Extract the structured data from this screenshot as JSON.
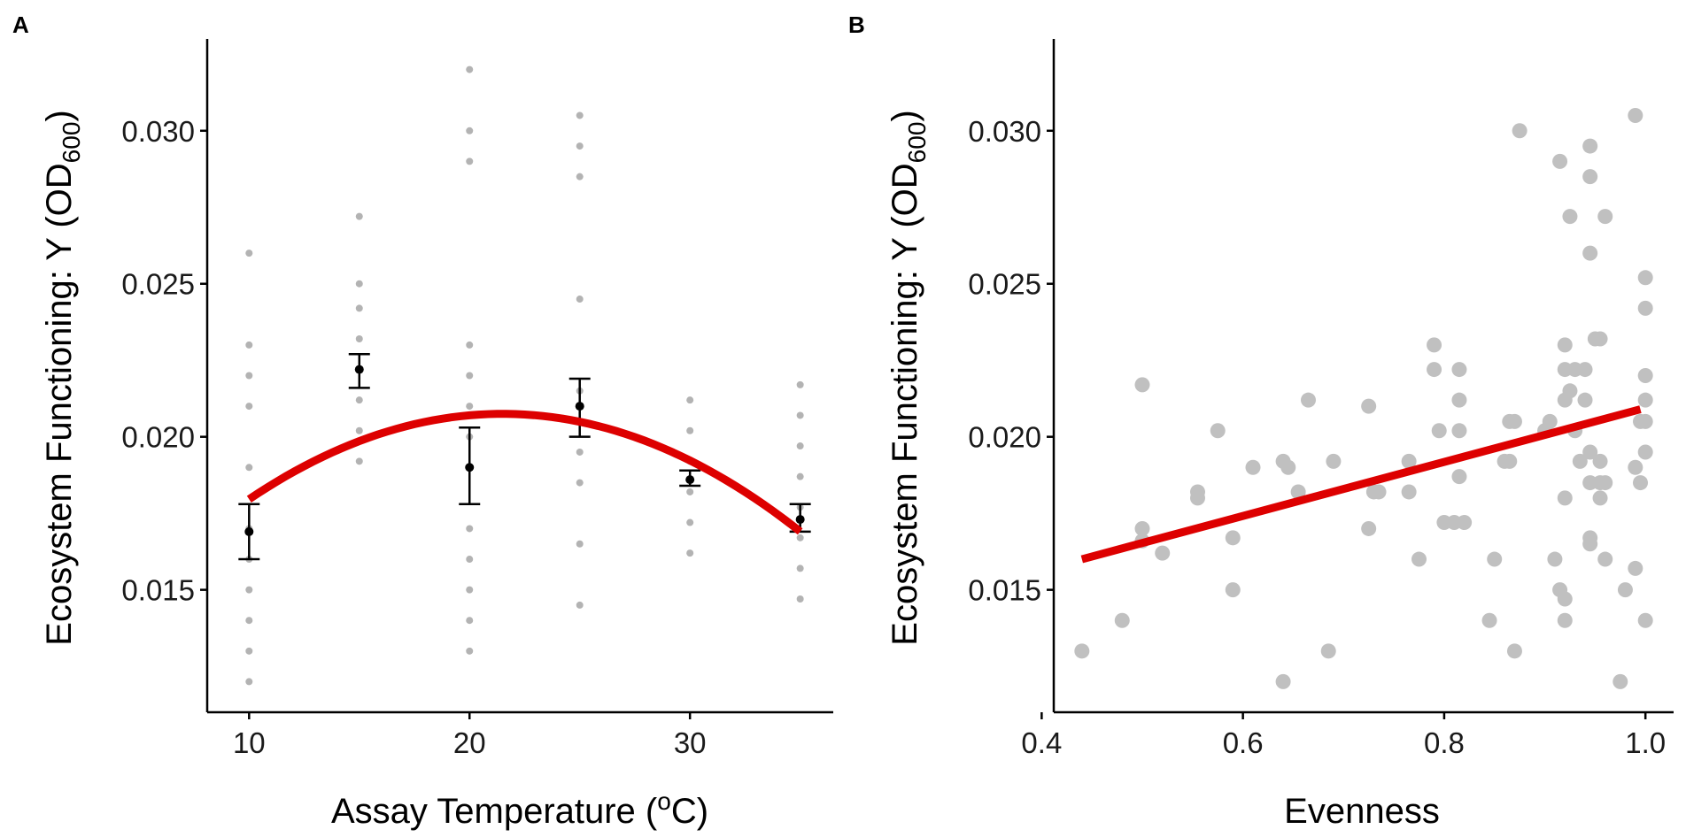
{
  "chart_data": [
    {
      "type": "scatter",
      "panel": "A",
      "title": "",
      "xlabel": {
        "prefix": "Assay Temperature (",
        "sup": "o",
        "suffix": "C)"
      },
      "ylabel": {
        "prefix": "Ecosystem Functioning: Y (OD",
        "sub": "600",
        "suffix": ")"
      },
      "xlim": [
        8.1,
        36.5
      ],
      "ylim": [
        0.011,
        0.033
      ],
      "xticks": [
        10,
        20,
        30
      ],
      "xtick_labels": [
        "10",
        "20",
        "30"
      ],
      "yticks": [
        0.015,
        0.02,
        0.025,
        0.03
      ],
      "ytick_labels": [
        "0.015",
        "0.020",
        "0.025",
        "0.030"
      ],
      "raw_points": [
        [
          10,
          0.026
        ],
        [
          10,
          0.023
        ],
        [
          10,
          0.022
        ],
        [
          10,
          0.021
        ],
        [
          10,
          0.019
        ],
        [
          10,
          0.017
        ],
        [
          10,
          0.016
        ],
        [
          10,
          0.015
        ],
        [
          10,
          0.014
        ],
        [
          10,
          0.013
        ],
        [
          10,
          0.012
        ],
        [
          15,
          0.0272
        ],
        [
          15,
          0.025
        ],
        [
          15,
          0.0242
        ],
        [
          15,
          0.0232
        ],
        [
          15,
          0.0222
        ],
        [
          15,
          0.0212
        ],
        [
          15,
          0.0202
        ],
        [
          15,
          0.0192
        ],
        [
          20,
          0.032
        ],
        [
          20,
          0.03
        ],
        [
          20,
          0.029
        ],
        [
          20,
          0.023
        ],
        [
          20,
          0.022
        ],
        [
          20,
          0.021
        ],
        [
          20,
          0.02
        ],
        [
          20,
          0.019
        ],
        [
          20,
          0.017
        ],
        [
          20,
          0.016
        ],
        [
          20,
          0.015
        ],
        [
          20,
          0.014
        ],
        [
          20,
          0.013
        ],
        [
          25,
          0.0305
        ],
        [
          25,
          0.0295
        ],
        [
          25,
          0.0285
        ],
        [
          25,
          0.0245
        ],
        [
          25,
          0.0215
        ],
        [
          25,
          0.0205
        ],
        [
          25,
          0.0195
        ],
        [
          25,
          0.0185
        ],
        [
          25,
          0.0165
        ],
        [
          25,
          0.0145
        ],
        [
          30,
          0.0212
        ],
        [
          30,
          0.0202
        ],
        [
          30,
          0.0192
        ],
        [
          30,
          0.0182
        ],
        [
          30,
          0.0172
        ],
        [
          30,
          0.0162
        ],
        [
          35,
          0.0217
        ],
        [
          35,
          0.0207
        ],
        [
          35,
          0.0197
        ],
        [
          35,
          0.0187
        ],
        [
          35,
          0.0177
        ],
        [
          35,
          0.0167
        ],
        [
          35,
          0.0157
        ],
        [
          35,
          0.0147
        ]
      ],
      "means": [
        {
          "x": 10,
          "y": 0.0169,
          "ymin": 0.016,
          "ymax": 0.0178
        },
        {
          "x": 15,
          "y": 0.0222,
          "ymin": 0.0216,
          "ymax": 0.0227
        },
        {
          "x": 20,
          "y": 0.019,
          "ymin": 0.0178,
          "ymax": 0.0203
        },
        {
          "x": 25,
          "y": 0.021,
          "ymin": 0.02,
          "ymax": 0.0219
        },
        {
          "x": 30,
          "y": 0.0186,
          "ymin": 0.0184,
          "ymax": 0.0189
        },
        {
          "x": 35,
          "y": 0.0173,
          "ymin": 0.0169,
          "ymax": 0.0178
        }
      ],
      "fit": {
        "type": "quadratic",
        "x_range": [
          10,
          35
        ],
        "vertex_x": 21.5,
        "vertex_y": 0.02075,
        "a": -2.11e-05,
        "color": "#dd0000"
      },
      "point_color": "#b3b3b3",
      "mean_color": "#000000"
    },
    {
      "type": "scatter",
      "panel": "B",
      "title": "",
      "xlabel": {
        "prefix": "Evenness",
        "sup": "",
        "suffix": ""
      },
      "ylabel": {
        "prefix": "Ecosystem Functioning: Y (OD",
        "sub": "600",
        "suffix": ")"
      },
      "xlim": [
        0.412,
        1.028
      ],
      "ylim": [
        0.011,
        0.033
      ],
      "xticks": [
        0.4,
        0.6,
        0.8,
        1.0
      ],
      "xtick_labels": [
        "0.4",
        "0.6",
        "0.8",
        "1.0"
      ],
      "yticks": [
        0.015,
        0.02,
        0.025,
        0.03
      ],
      "ytick_labels": [
        "0.015",
        "0.020",
        "0.025",
        "0.030"
      ],
      "raw_points": [
        [
          0.44,
          0.013
        ],
        [
          0.48,
          0.014
        ],
        [
          0.5,
          0.0217
        ],
        [
          0.5,
          0.017
        ],
        [
          0.5,
          0.0166
        ],
        [
          0.52,
          0.0162
        ],
        [
          0.555,
          0.0182
        ],
        [
          0.555,
          0.018
        ],
        [
          0.575,
          0.0202
        ],
        [
          0.59,
          0.015
        ],
        [
          0.59,
          0.0167
        ],
        [
          0.61,
          0.019
        ],
        [
          0.64,
          0.012
        ],
        [
          0.64,
          0.0192
        ],
        [
          0.645,
          0.019
        ],
        [
          0.655,
          0.0182
        ],
        [
          0.665,
          0.0212
        ],
        [
          0.685,
          0.013
        ],
        [
          0.69,
          0.0192
        ],
        [
          0.725,
          0.021
        ],
        [
          0.725,
          0.017
        ],
        [
          0.73,
          0.0182
        ],
        [
          0.735,
          0.0182
        ],
        [
          0.765,
          0.0192
        ],
        [
          0.765,
          0.0182
        ],
        [
          0.775,
          0.016
        ],
        [
          0.79,
          0.023
        ],
        [
          0.79,
          0.0222
        ],
        [
          0.795,
          0.0202
        ],
        [
          0.8,
          0.0172
        ],
        [
          0.81,
          0.0172
        ],
        [
          0.815,
          0.0222
        ],
        [
          0.815,
          0.0212
        ],
        [
          0.815,
          0.0202
        ],
        [
          0.815,
          0.0187
        ],
        [
          0.82,
          0.0172
        ],
        [
          0.845,
          0.014
        ],
        [
          0.85,
          0.016
        ],
        [
          0.86,
          0.0192
        ],
        [
          0.865,
          0.0205
        ],
        [
          0.865,
          0.0192
        ],
        [
          0.87,
          0.0205
        ],
        [
          0.87,
          0.013
        ],
        [
          0.875,
          0.03
        ],
        [
          0.9,
          0.0202
        ],
        [
          0.905,
          0.0205
        ],
        [
          0.91,
          0.016
        ],
        [
          0.915,
          0.029
        ],
        [
          0.915,
          0.015
        ],
        [
          0.92,
          0.0222
        ],
        [
          0.92,
          0.0212
        ],
        [
          0.92,
          0.014
        ],
        [
          0.92,
          0.018
        ],
        [
          0.92,
          0.023
        ],
        [
          0.92,
          0.0147
        ],
        [
          0.925,
          0.0272
        ],
        [
          0.93,
          0.0222
        ],
        [
          0.925,
          0.0215
        ],
        [
          0.93,
          0.0202
        ],
        [
          0.935,
          0.0192
        ],
        [
          0.94,
          0.0222
        ],
        [
          0.94,
          0.0212
        ],
        [
          0.945,
          0.0295
        ],
        [
          0.945,
          0.0285
        ],
        [
          0.945,
          0.026
        ],
        [
          0.945,
          0.0195
        ],
        [
          0.945,
          0.0185
        ],
        [
          0.945,
          0.0167
        ],
        [
          0.945,
          0.0165
        ],
        [
          0.95,
          0.0232
        ],
        [
          0.955,
          0.0232
        ],
        [
          0.955,
          0.0192
        ],
        [
          0.955,
          0.0185
        ],
        [
          0.955,
          0.018
        ],
        [
          0.96,
          0.0272
        ],
        [
          0.96,
          0.016
        ],
        [
          0.96,
          0.0185
        ],
        [
          0.975,
          0.012
        ],
        [
          0.98,
          0.015
        ],
        [
          0.99,
          0.0305
        ],
        [
          0.99,
          0.019
        ],
        [
          0.99,
          0.0157
        ],
        [
          0.995,
          0.0185
        ],
        [
          0.995,
          0.0205
        ],
        [
          1.0,
          0.0252
        ],
        [
          1.0,
          0.0242
        ],
        [
          1.0,
          0.022
        ],
        [
          1.0,
          0.0212
        ],
        [
          1.0,
          0.0205
        ],
        [
          1.0,
          0.0195
        ],
        [
          1.0,
          0.014
        ]
      ],
      "fit": {
        "type": "linear",
        "x_range": [
          0.44,
          0.995
        ],
        "y_range": [
          0.016,
          0.0209
        ],
        "color": "#dd0000"
      },
      "point_color": "#c0c0c0"
    }
  ]
}
